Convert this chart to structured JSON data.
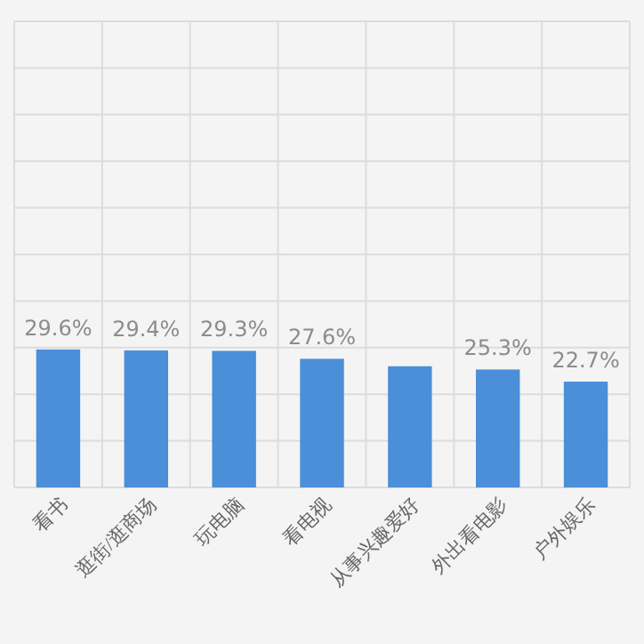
{
  "chart_data": {
    "type": "bar",
    "categories": [
      "看书",
      "逛街/逛商场",
      "玩电脑",
      "看电视",
      "从事兴趣爱好",
      "外出看电影",
      "户外娱乐"
    ],
    "values": [
      29.6,
      29.4,
      29.3,
      27.6,
      26,
      25.3,
      22.7
    ],
    "value_labels": [
      "29.6%",
      "29.4%",
      "29.3%",
      "27.6%",
      null,
      "25.3%",
      "22.7%"
    ],
    "color": "#4a8fd8",
    "ylim": [
      0,
      100
    ],
    "yticks": [
      {
        "value": 0,
        "label": null
      },
      {
        "value": 10,
        "label": null
      },
      {
        "value": 20,
        "label": null
      },
      {
        "value": 30,
        "label": null
      },
      {
        "value": 40,
        "label": null
      },
      {
        "value": 50,
        "label": null
      },
      {
        "value": 60,
        "label": null
      },
      {
        "value": 70,
        "label": null
      },
      {
        "value": 80,
        "label": null
      },
      {
        "value": 90,
        "label": null
      },
      {
        "value": 100,
        "label": null
      }
    ],
    "grid": true,
    "tick_labels": "x"
  }
}
